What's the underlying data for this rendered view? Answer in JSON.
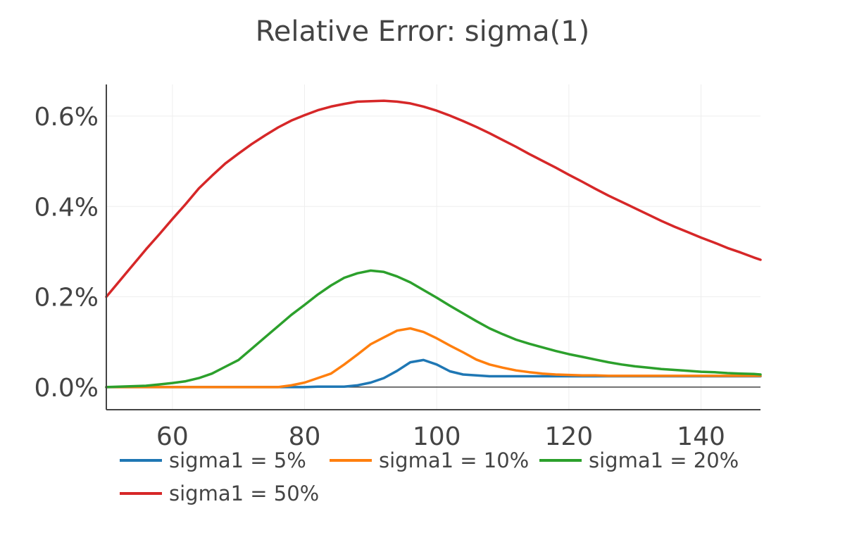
{
  "chart_data": {
    "type": "line",
    "title": "Relative Error: sigma(1)",
    "xlabel": "",
    "ylabel": "",
    "xlim": [
      50,
      149
    ],
    "ylim": [
      -0.0005,
      0.0067
    ],
    "x_ticks": [
      60,
      80,
      100,
      120,
      140
    ],
    "y_ticks": [
      0,
      0.002,
      0.004,
      0.006
    ],
    "y_tick_labels": [
      "0.0%",
      "0.2%",
      "0.4%",
      "0.6%"
    ],
    "grid": true,
    "legend_position": "bottom",
    "x": [
      50,
      52,
      54,
      56,
      58,
      60,
      62,
      64,
      66,
      68,
      70,
      72,
      74,
      76,
      78,
      80,
      82,
      84,
      86,
      88,
      90,
      92,
      94,
      96,
      98,
      100,
      102,
      104,
      106,
      108,
      110,
      112,
      114,
      116,
      118,
      120,
      122,
      124,
      126,
      128,
      130,
      132,
      134,
      136,
      138,
      140,
      142,
      144,
      146,
      148,
      149
    ],
    "series": [
      {
        "name": "sigma1 = 5%",
        "color": "#1f77b4",
        "values": [
          0,
          0,
          0,
          0,
          0,
          0,
          0,
          0,
          0,
          0,
          0,
          0,
          0,
          0,
          0,
          0,
          1e-05,
          1e-05,
          1e-05,
          4e-05,
          0.0001,
          0.0002,
          0.00036,
          0.00055,
          0.0006,
          0.0005,
          0.00035,
          0.00028,
          0.00026,
          0.00024,
          0.00024,
          0.00024,
          0.00024,
          0.00024,
          0.00024,
          0.00024,
          0.00024,
          0.00024,
          0.00024,
          0.00024,
          0.00024,
          0.00024,
          0.00024,
          0.00024,
          0.00024,
          0.00024,
          0.00024,
          0.00024,
          0.00024,
          0.00024,
          0.00024
        ]
      },
      {
        "name": "sigma1 = 10%",
        "color": "#ff7f0e",
        "values": [
          0,
          0,
          0,
          0,
          0,
          0,
          0,
          0,
          0,
          0,
          0,
          0,
          0,
          0,
          4e-05,
          0.0001,
          0.0002,
          0.0003,
          0.0005,
          0.00072,
          0.00095,
          0.0011,
          0.00125,
          0.0013,
          0.00122,
          0.00108,
          0.00092,
          0.00077,
          0.00061,
          0.0005,
          0.00043,
          0.00037,
          0.00033,
          0.0003,
          0.00028,
          0.00027,
          0.00026,
          0.00026,
          0.00025,
          0.00025,
          0.00025,
          0.00025,
          0.00025,
          0.00025,
          0.00025,
          0.00025,
          0.00025,
          0.00025,
          0.00025,
          0.00025,
          0.00025
        ]
      },
      {
        "name": "sigma1 = 20%",
        "color": "#2ca02c",
        "values": [
          0,
          1e-05,
          2e-05,
          3e-05,
          6e-05,
          9e-05,
          0.00013,
          0.0002,
          0.0003,
          0.00045,
          0.0006,
          0.00085,
          0.0011,
          0.00135,
          0.0016,
          0.00182,
          0.00205,
          0.00225,
          0.00242,
          0.00252,
          0.00258,
          0.00255,
          0.00245,
          0.00232,
          0.00215,
          0.00198,
          0.0018,
          0.00163,
          0.00146,
          0.0013,
          0.00117,
          0.00105,
          0.00096,
          0.00088,
          0.0008,
          0.00073,
          0.00067,
          0.00061,
          0.00055,
          0.0005,
          0.00046,
          0.00043,
          0.0004,
          0.00038,
          0.00036,
          0.00034,
          0.00033,
          0.00031,
          0.0003,
          0.00029,
          0.00028
        ]
      },
      {
        "name": "sigma1 = 50%",
        "color": "#d62728",
        "values": [
          0.002,
          0.00235,
          0.0027,
          0.00305,
          0.00338,
          0.00372,
          0.00405,
          0.0044,
          0.00468,
          0.00495,
          0.00517,
          0.00538,
          0.00557,
          0.00575,
          0.0059,
          0.00602,
          0.00613,
          0.00621,
          0.00627,
          0.00632,
          0.00633,
          0.00634,
          0.00632,
          0.00628,
          0.00621,
          0.00612,
          0.00601,
          0.00589,
          0.00576,
          0.00562,
          0.00547,
          0.00532,
          0.00516,
          0.00501,
          0.00486,
          0.0047,
          0.00455,
          0.00439,
          0.00424,
          0.0041,
          0.00396,
          0.00382,
          0.00368,
          0.00355,
          0.00343,
          0.00331,
          0.0032,
          0.00308,
          0.00298,
          0.00287,
          0.00282
        ]
      }
    ]
  }
}
